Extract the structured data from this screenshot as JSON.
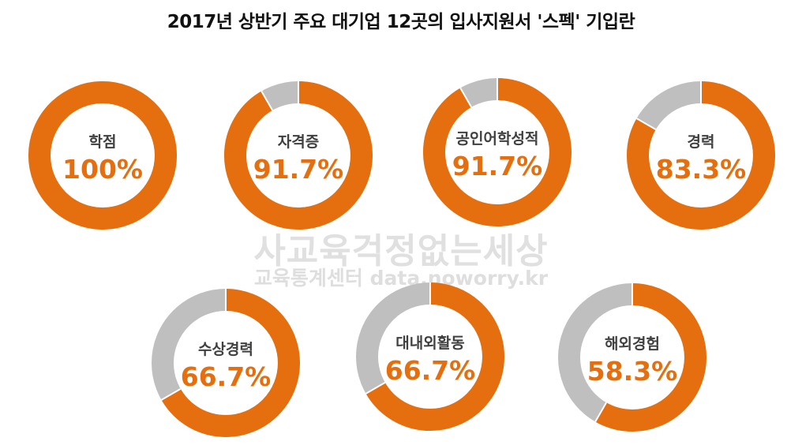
{
  "title": "2017년 상반기 주요 대기업  12곳의 입사지원서 '스펙' 기입란",
  "watermark": {
    "brand": "사교육걱정없는세상",
    "sub": "교육통계센터 data.noworry.kr"
  },
  "colors": {
    "value": "#E56F0E",
    "remainder": "#BFBFBF",
    "label": "#404040"
  },
  "chart_data": [
    {
      "type": "pie",
      "donut": true,
      "label": "학점",
      "value": 100,
      "display": "100%"
    },
    {
      "type": "pie",
      "donut": true,
      "label": "자격증",
      "value": 91.7,
      "display": "91.7%"
    },
    {
      "type": "pie",
      "donut": true,
      "label": "공인어학성적",
      "value": 91.7,
      "display": "91.7%"
    },
    {
      "type": "pie",
      "donut": true,
      "label": "경력",
      "value": 83.3,
      "display": "83.3%"
    },
    {
      "type": "pie",
      "donut": true,
      "label": "수상경력",
      "value": 66.7,
      "display": "66.7%"
    },
    {
      "type": "pie",
      "donut": true,
      "label": "대내외활동",
      "value": 66.7,
      "display": "66.7%"
    },
    {
      "type": "pie",
      "donut": true,
      "label": "해외경험",
      "value": 58.3,
      "display": "58.3%"
    }
  ]
}
